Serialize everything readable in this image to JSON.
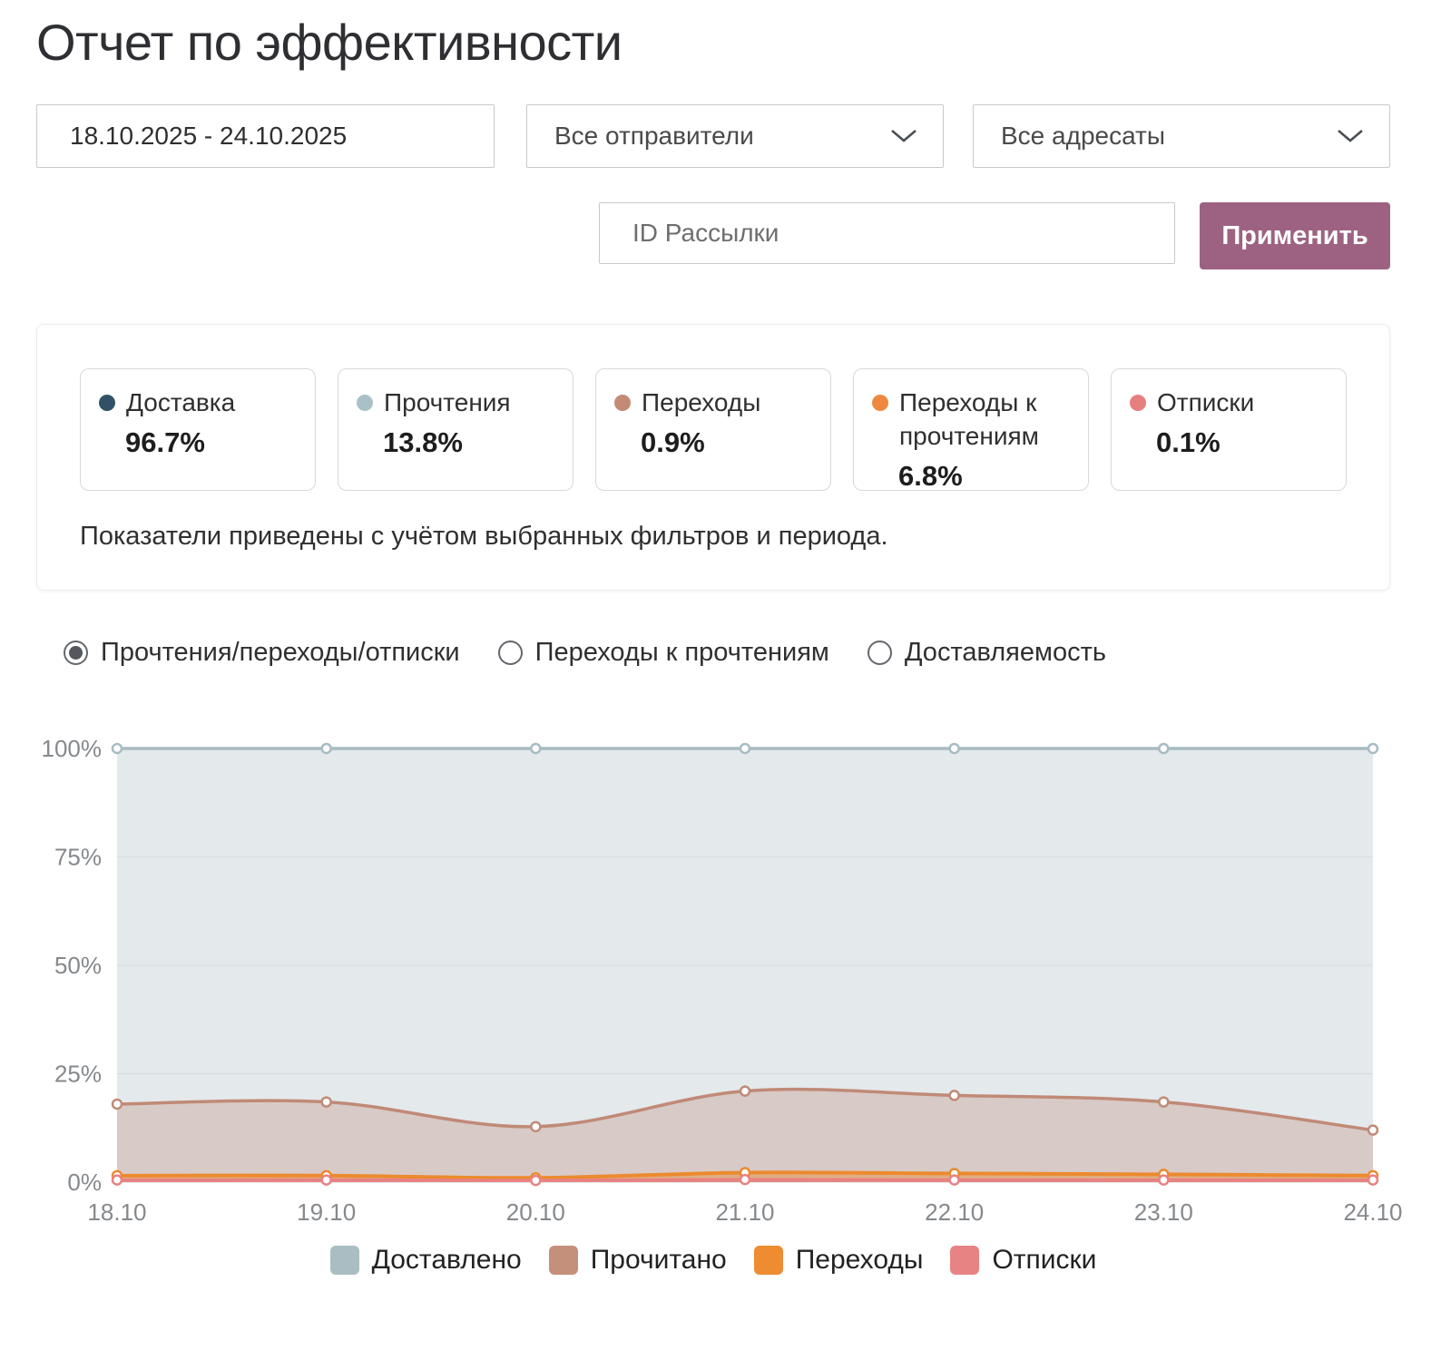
{
  "page": {
    "title": "Отчет по эффективности"
  },
  "filters": {
    "date_range": "18.10.2025 - 24.10.2025",
    "senders_value": "Все отправители",
    "recipients_value": "Все адресаты",
    "mailing_id_placeholder": "ID Рассылки",
    "apply_label": "Применить"
  },
  "summary": {
    "cards": [
      {
        "label": "Доставка",
        "value": "96.7%",
        "color": "#315266"
      },
      {
        "label": "Прочтения",
        "value": "13.8%",
        "color": "#a9c1c6"
      },
      {
        "label": "Переходы",
        "value": "0.9%",
        "color": "#c38b76"
      },
      {
        "label": "Переходы к прочтениям",
        "value": "6.8%",
        "color": "#ee8840"
      },
      {
        "label": "Отписки",
        "value": "0.1%",
        "color": "#e87f7f"
      }
    ],
    "note": "Показатели приведены с учётом выбранных фильтров и периода."
  },
  "chart_tabs": [
    {
      "label": "Прочтения/переходы/отписки",
      "selected": true
    },
    {
      "label": "Переходы к прочтениям",
      "selected": false
    },
    {
      "label": "Доставляемость",
      "selected": false
    }
  ],
  "chart_data": {
    "type": "area",
    "x": [
      "18.10",
      "19.10",
      "20.10",
      "21.10",
      "22.10",
      "23.10",
      "24.10"
    ],
    "ylabels": [
      "0%",
      "25%",
      "50%",
      "75%",
      "100%"
    ],
    "ylim": [
      0,
      100
    ],
    "grid": true,
    "legend_position": "bottom",
    "series": [
      {
        "name": "Доставлено",
        "color": "#a7bcc2",
        "fill": "#e4e9ec",
        "values": [
          100,
          100,
          100,
          100,
          100,
          100,
          100
        ]
      },
      {
        "name": "Прочитано",
        "color": "#c08a77",
        "fill": "rgba(196,145,129,0.35)",
        "values": [
          18,
          18.5,
          12.8,
          21,
          20,
          18.5,
          12
        ]
      },
      {
        "name": "Переходы",
        "color": "#ec8a2f",
        "fill": "rgba(236,138,47,0.45)",
        "values": [
          1.5,
          1.5,
          1.0,
          2.2,
          2.0,
          1.8,
          1.5
        ]
      },
      {
        "name": "Отписки",
        "color": "#e88282",
        "fill": "rgba(232,130,130,0.8)",
        "values": [
          0.5,
          0.5,
          0.4,
          0.6,
          0.5,
          0.5,
          0.5
        ]
      }
    ]
  },
  "legend": [
    {
      "label": "Доставлено",
      "color": "#a9bec3"
    },
    {
      "label": "Прочитано",
      "color": "#c4907c"
    },
    {
      "label": "Переходы",
      "color": "#ef8b31"
    },
    {
      "label": "Отписки",
      "color": "#e88383"
    }
  ]
}
